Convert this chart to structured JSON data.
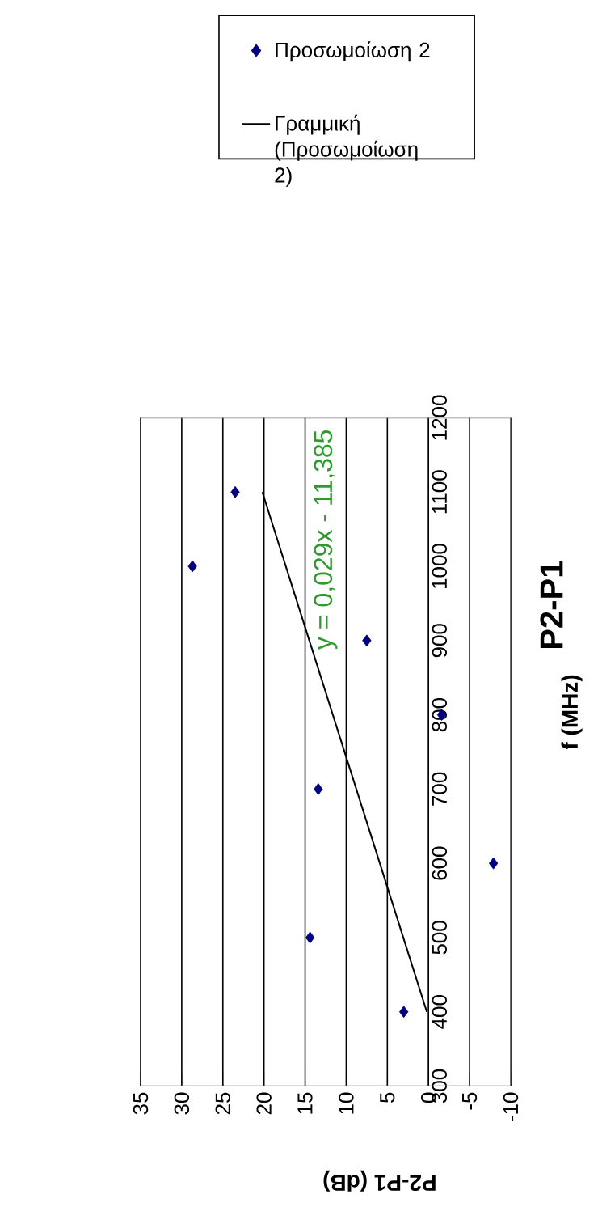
{
  "chart_data": {
    "type": "scatter",
    "title": "P2-P1",
    "xlabel": "P2-P1 (dB)",
    "ylabel": "f (MHz)",
    "xlim": [
      35,
      -10
    ],
    "xticks": [
      35,
      30,
      25,
      20,
      15,
      10,
      5,
      0,
      -5,
      -10
    ],
    "ylim": [
      300,
      1200
    ],
    "yticks": [
      300,
      400,
      500,
      600,
      700,
      800,
      900,
      1000,
      1100,
      1200
    ],
    "grid": "x",
    "legend": "top",
    "marker": "diamond",
    "annotations": [
      "y = 0,029x - 11,385"
    ],
    "x": [
      3.0,
      14.4,
      -7.9,
      13.4,
      -1.6,
      7.5,
      28.7,
      23.5
    ],
    "series": [
      {
        "name": "Προσωμοίωση 2",
        "color": "#000080",
        "values": [
          400,
          500,
          600,
          700,
          800,
          900,
          1000,
          1100
        ]
      },
      {
        "name": "Γραμμική (Προσωμοίωση 2)",
        "type": "line",
        "color": "#000000",
        "x": [
          0.2,
          20.2
        ],
        "values": [
          400,
          1100
        ],
        "marker": "none"
      }
    ]
  }
}
